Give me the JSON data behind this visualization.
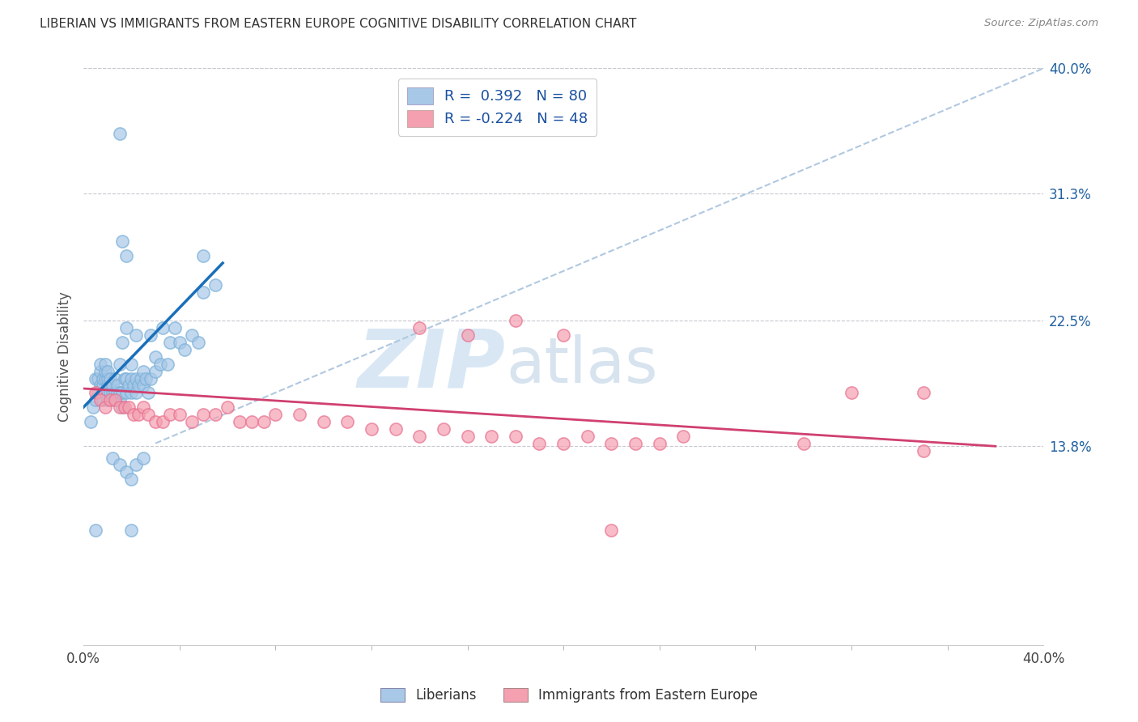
{
  "title": "LIBERIAN VS IMMIGRANTS FROM EASTERN EUROPE COGNITIVE DISABILITY CORRELATION CHART",
  "source": "Source: ZipAtlas.com",
  "ylabel": "Cognitive Disability",
  "xlim": [
    0.0,
    0.4
  ],
  "ylim": [
    0.0,
    0.4
  ],
  "ytick_labels": [
    "13.8%",
    "22.5%",
    "31.3%",
    "40.0%"
  ],
  "ytick_values": [
    0.138,
    0.225,
    0.313,
    0.4
  ],
  "xtick_labels": [
    "0.0%",
    "40.0%"
  ],
  "xtick_values": [
    0.0,
    0.4
  ],
  "legend_labels": [
    "Liberians",
    "Immigrants from Eastern Europe"
  ],
  "r_liberian": 0.392,
  "n_liberian": 80,
  "r_eastern_europe": -0.224,
  "n_eastern_europe": 48,
  "blue_color": "#a8c8e8",
  "pink_color": "#f4a0b0",
  "blue_fill_color": "#7ab0d8",
  "pink_fill_color": "#e87090",
  "blue_line_color": "#1a6fba",
  "pink_line_color": "#d04070",
  "dash_line_color": "#b0c8e0",
  "blue_scatter": [
    [
      0.003,
      0.155
    ],
    [
      0.004,
      0.165
    ],
    [
      0.005,
      0.17
    ],
    [
      0.005,
      0.185
    ],
    [
      0.006,
      0.175
    ],
    [
      0.006,
      0.185
    ],
    [
      0.007,
      0.18
    ],
    [
      0.007,
      0.19
    ],
    [
      0.007,
      0.195
    ],
    [
      0.008,
      0.17
    ],
    [
      0.008,
      0.18
    ],
    [
      0.008,
      0.185
    ],
    [
      0.009,
      0.175
    ],
    [
      0.009,
      0.185
    ],
    [
      0.009,
      0.19
    ],
    [
      0.009,
      0.195
    ],
    [
      0.01,
      0.17
    ],
    [
      0.01,
      0.18
    ],
    [
      0.01,
      0.185
    ],
    [
      0.01,
      0.19
    ],
    [
      0.011,
      0.175
    ],
    [
      0.011,
      0.18
    ],
    [
      0.011,
      0.185
    ],
    [
      0.012,
      0.175
    ],
    [
      0.012,
      0.18
    ],
    [
      0.013,
      0.17
    ],
    [
      0.013,
      0.175
    ],
    [
      0.013,
      0.185
    ],
    [
      0.014,
      0.175
    ],
    [
      0.014,
      0.18
    ],
    [
      0.015,
      0.17
    ],
    [
      0.015,
      0.175
    ],
    [
      0.015,
      0.195
    ],
    [
      0.016,
      0.165
    ],
    [
      0.016,
      0.175
    ],
    [
      0.016,
      0.21
    ],
    [
      0.017,
      0.185
    ],
    [
      0.018,
      0.175
    ],
    [
      0.018,
      0.185
    ],
    [
      0.018,
      0.22
    ],
    [
      0.019,
      0.18
    ],
    [
      0.02,
      0.175
    ],
    [
      0.02,
      0.185
    ],
    [
      0.02,
      0.195
    ],
    [
      0.021,
      0.18
    ],
    [
      0.022,
      0.175
    ],
    [
      0.022,
      0.185
    ],
    [
      0.022,
      0.215
    ],
    [
      0.023,
      0.18
    ],
    [
      0.024,
      0.185
    ],
    [
      0.025,
      0.18
    ],
    [
      0.025,
      0.19
    ],
    [
      0.026,
      0.185
    ],
    [
      0.027,
      0.175
    ],
    [
      0.028,
      0.185
    ],
    [
      0.028,
      0.215
    ],
    [
      0.03,
      0.19
    ],
    [
      0.03,
      0.2
    ],
    [
      0.032,
      0.195
    ],
    [
      0.033,
      0.22
    ],
    [
      0.035,
      0.195
    ],
    [
      0.036,
      0.21
    ],
    [
      0.038,
      0.22
    ],
    [
      0.04,
      0.21
    ],
    [
      0.042,
      0.205
    ],
    [
      0.045,
      0.215
    ],
    [
      0.048,
      0.21
    ],
    [
      0.05,
      0.245
    ],
    [
      0.05,
      0.27
    ],
    [
      0.055,
      0.25
    ],
    [
      0.012,
      0.13
    ],
    [
      0.015,
      0.125
    ],
    [
      0.018,
      0.12
    ],
    [
      0.02,
      0.115
    ],
    [
      0.022,
      0.125
    ],
    [
      0.025,
      0.13
    ],
    [
      0.015,
      0.355
    ],
    [
      0.016,
      0.28
    ],
    [
      0.018,
      0.27
    ],
    [
      0.02,
      0.08
    ],
    [
      0.005,
      0.08
    ]
  ],
  "pink_scatter": [
    [
      0.005,
      0.175
    ],
    [
      0.007,
      0.17
    ],
    [
      0.009,
      0.165
    ],
    [
      0.011,
      0.17
    ],
    [
      0.013,
      0.17
    ],
    [
      0.015,
      0.165
    ],
    [
      0.017,
      0.165
    ],
    [
      0.019,
      0.165
    ],
    [
      0.021,
      0.16
    ],
    [
      0.023,
      0.16
    ],
    [
      0.025,
      0.165
    ],
    [
      0.027,
      0.16
    ],
    [
      0.03,
      0.155
    ],
    [
      0.033,
      0.155
    ],
    [
      0.036,
      0.16
    ],
    [
      0.04,
      0.16
    ],
    [
      0.045,
      0.155
    ],
    [
      0.05,
      0.16
    ],
    [
      0.055,
      0.16
    ],
    [
      0.06,
      0.165
    ],
    [
      0.065,
      0.155
    ],
    [
      0.07,
      0.155
    ],
    [
      0.075,
      0.155
    ],
    [
      0.08,
      0.16
    ],
    [
      0.09,
      0.16
    ],
    [
      0.1,
      0.155
    ],
    [
      0.11,
      0.155
    ],
    [
      0.12,
      0.15
    ],
    [
      0.13,
      0.15
    ],
    [
      0.14,
      0.145
    ],
    [
      0.15,
      0.15
    ],
    [
      0.16,
      0.145
    ],
    [
      0.17,
      0.145
    ],
    [
      0.18,
      0.145
    ],
    [
      0.19,
      0.14
    ],
    [
      0.2,
      0.14
    ],
    [
      0.21,
      0.145
    ],
    [
      0.22,
      0.14
    ],
    [
      0.23,
      0.14
    ],
    [
      0.24,
      0.14
    ],
    [
      0.14,
      0.22
    ],
    [
      0.16,
      0.215
    ],
    [
      0.18,
      0.225
    ],
    [
      0.2,
      0.215
    ],
    [
      0.25,
      0.145
    ],
    [
      0.3,
      0.14
    ],
    [
      0.35,
      0.135
    ],
    [
      0.32,
      0.175
    ],
    [
      0.35,
      0.175
    ],
    [
      0.22,
      0.08
    ]
  ],
  "watermark_zip": "ZIP",
  "watermark_atlas": "atlas",
  "background_color": "#ffffff",
  "grid_color": "#c8c8d0"
}
